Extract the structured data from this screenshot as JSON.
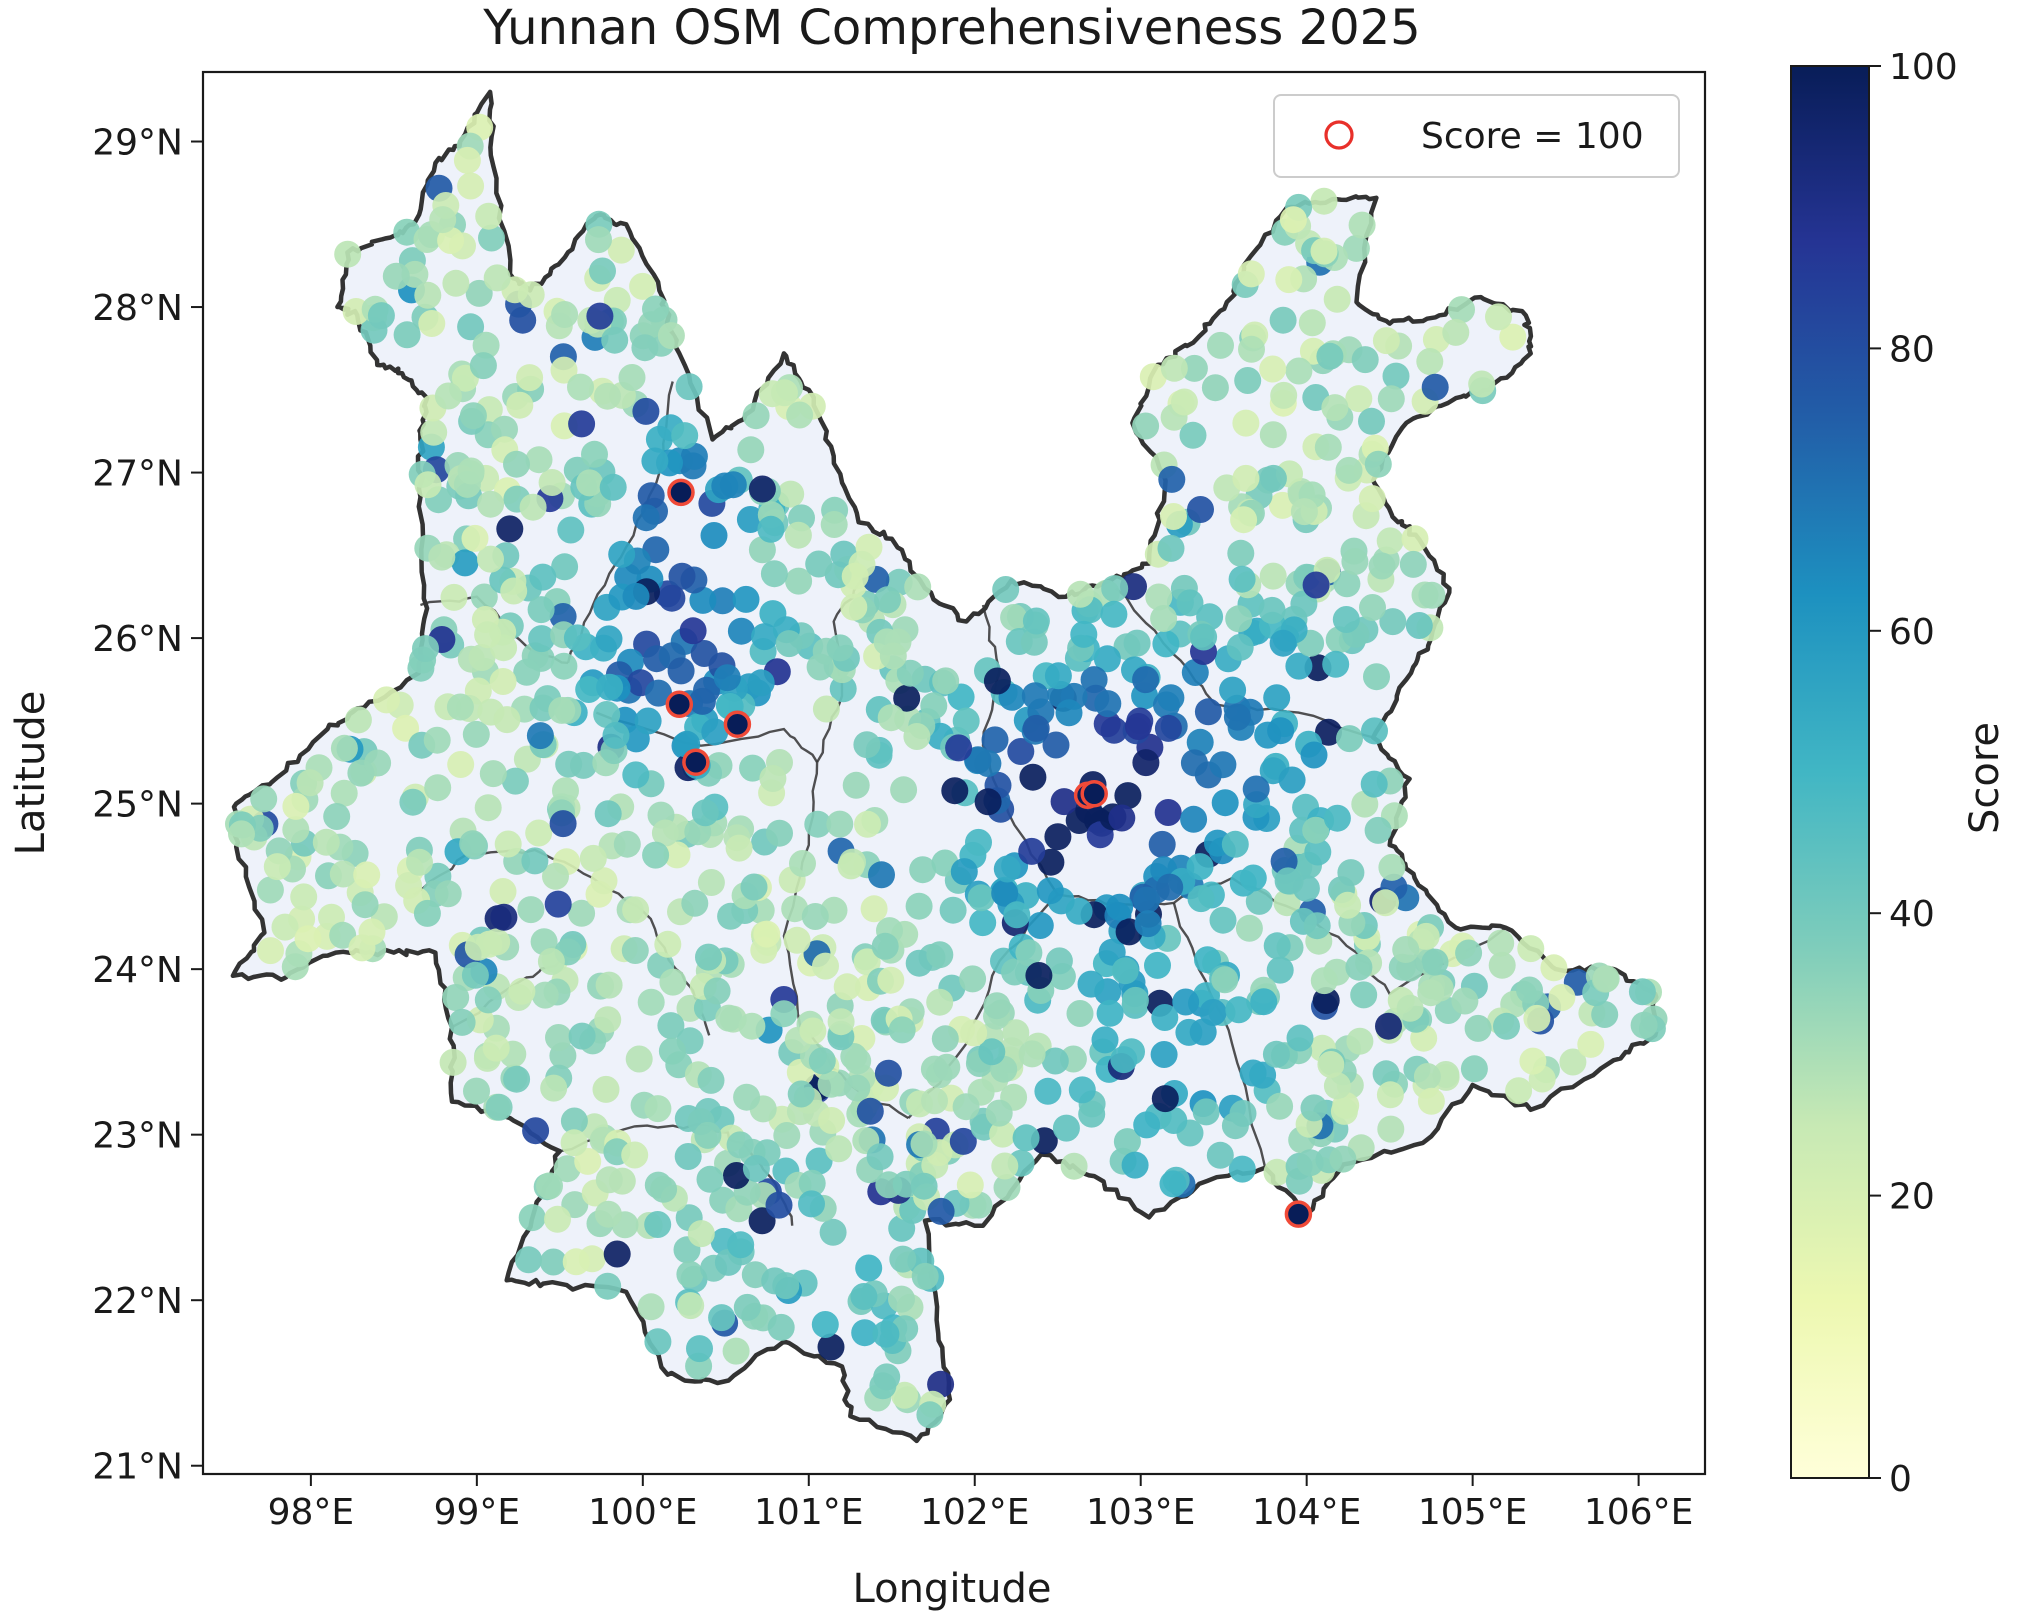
{
  "chart_data": {
    "type": "scatter",
    "title": "Yunnan OSM Comprehensiveness 2025",
    "xlabel": "Longitude",
    "ylabel": "Latitude",
    "xlim": [
      97.35,
      106.4
    ],
    "ylim": [
      20.95,
      29.42
    ],
    "x_ticks": [
      {
        "value": 98,
        "label": "98°E"
      },
      {
        "value": 99,
        "label": "99°E"
      },
      {
        "value": 100,
        "label": "100°E"
      },
      {
        "value": 101,
        "label": "101°E"
      },
      {
        "value": 102,
        "label": "102°E"
      },
      {
        "value": 103,
        "label": "103°E"
      },
      {
        "value": 104,
        "label": "104°E"
      },
      {
        "value": 105,
        "label": "105°E"
      },
      {
        "value": 106,
        "label": "106°E"
      }
    ],
    "y_ticks": [
      {
        "value": 21,
        "label": "21°N"
      },
      {
        "value": 22,
        "label": "22°N"
      },
      {
        "value": 23,
        "label": "23°N"
      },
      {
        "value": 24,
        "label": "24°N"
      },
      {
        "value": 25,
        "label": "25°N"
      },
      {
        "value": 26,
        "label": "26°N"
      },
      {
        "value": 27,
        "label": "27°N"
      },
      {
        "value": 28,
        "label": "28°N"
      },
      {
        "value": 29,
        "label": "29°N"
      }
    ],
    "colorbar": {
      "label": "Score",
      "colormap": "YlGnBu",
      "range": [
        0,
        100
      ],
      "ticks": [
        {
          "value": 0,
          "label": "0"
        },
        {
          "value": 20,
          "label": "20"
        },
        {
          "value": 40,
          "label": "40"
        },
        {
          "value": 60,
          "label": "60"
        },
        {
          "value": 80,
          "label": "80"
        },
        {
          "value": 100,
          "label": "100"
        }
      ],
      "colors": [
        "#ffffd9",
        "#edf8b1",
        "#c7e9b4",
        "#7fcdbb",
        "#41b6c4",
        "#1d91c0",
        "#225ea8",
        "#253494",
        "#081d58"
      ]
    },
    "legend": {
      "entries": [
        {
          "label": "Score = 100",
          "marker": "circle",
          "edge_color": "#e8302a"
        }
      ],
      "position": "top-right"
    },
    "grid": false,
    "region_fill": "#eef2fa",
    "boundary_color": "#333333",
    "highlight_color": "#f04a38",
    "province_boundary": [
      [
        97.53,
        23.96
      ],
      [
        97.72,
        24.22
      ],
      [
        97.55,
        24.74
      ],
      [
        97.55,
        25.0
      ],
      [
        97.8,
        25.16
      ],
      [
        98.1,
        25.45
      ],
      [
        98.32,
        25.58
      ],
      [
        98.65,
        25.79
      ],
      [
        98.7,
        26.18
      ],
      [
        98.66,
        26.75
      ],
      [
        98.66,
        27.2
      ],
      [
        98.7,
        27.45
      ],
      [
        98.55,
        27.6
      ],
      [
        98.4,
        27.65
      ],
      [
        98.28,
        27.95
      ],
      [
        98.16,
        28.0
      ],
      [
        98.22,
        28.33
      ],
      [
        98.48,
        28.42
      ],
      [
        98.62,
        28.5
      ],
      [
        98.75,
        28.87
      ],
      [
        98.9,
        29.0
      ],
      [
        99.08,
        29.3
      ],
      [
        99.1,
        28.85
      ],
      [
        99.2,
        28.2
      ],
      [
        99.32,
        28.1
      ],
      [
        99.53,
        28.3
      ],
      [
        99.72,
        28.55
      ],
      [
        99.9,
        28.5
      ],
      [
        100.1,
        28.1
      ],
      [
        100.22,
        27.72
      ],
      [
        100.42,
        27.2
      ],
      [
        100.62,
        27.35
      ],
      [
        100.85,
        27.72
      ],
      [
        101.0,
        27.5
      ],
      [
        101.15,
        27.1
      ],
      [
        101.3,
        26.7
      ],
      [
        101.5,
        26.6
      ],
      [
        101.7,
        26.3
      ],
      [
        101.95,
        26.1
      ],
      [
        102.22,
        26.35
      ],
      [
        102.55,
        26.25
      ],
      [
        102.82,
        26.35
      ],
      [
        103.05,
        26.45
      ],
      [
        103.15,
        26.95
      ],
      [
        102.95,
        27.3
      ],
      [
        103.1,
        27.65
      ],
      [
        103.35,
        27.82
      ],
      [
        103.55,
        28.06
      ],
      [
        103.62,
        28.25
      ],
      [
        103.88,
        28.6
      ],
      [
        104.15,
        28.65
      ],
      [
        104.42,
        28.66
      ],
      [
        104.3,
        28.03
      ],
      [
        104.5,
        27.9
      ],
      [
        104.8,
        27.95
      ],
      [
        105.05,
        28.06
      ],
      [
        105.32,
        27.95
      ],
      [
        105.35,
        27.72
      ],
      [
        105.1,
        27.5
      ],
      [
        104.9,
        27.45
      ],
      [
        104.6,
        27.3
      ],
      [
        104.4,
        26.95
      ],
      [
        104.55,
        26.7
      ],
      [
        104.66,
        26.62
      ],
      [
        104.86,
        26.3
      ],
      [
        104.75,
        26.0
      ],
      [
        104.6,
        25.75
      ],
      [
        104.4,
        25.4
      ],
      [
        104.62,
        25.15
      ],
      [
        104.5,
        24.75
      ],
      [
        104.65,
        24.55
      ],
      [
        104.9,
        24.25
      ],
      [
        105.2,
        24.25
      ],
      [
        105.5,
        24.0
      ],
      [
        105.85,
        24.0
      ],
      [
        106.1,
        23.85
      ],
      [
        106.1,
        23.6
      ],
      [
        105.85,
        23.45
      ],
      [
        105.35,
        23.15
      ],
      [
        105.0,
        23.3
      ],
      [
        104.7,
        22.95
      ],
      [
        104.22,
        22.82
      ],
      [
        104.0,
        22.52
      ],
      [
        103.75,
        22.8
      ],
      [
        103.4,
        22.72
      ],
      [
        103.05,
        22.5
      ],
      [
        102.72,
        22.75
      ],
      [
        102.4,
        22.88
      ],
      [
        102.05,
        22.45
      ],
      [
        101.7,
        22.48
      ],
      [
        101.78,
        21.8
      ],
      [
        101.85,
        21.4
      ],
      [
        101.65,
        21.15
      ],
      [
        101.25,
        21.3
      ],
      [
        101.2,
        21.6
      ],
      [
        100.85,
        21.75
      ],
      [
        100.45,
        21.5
      ],
      [
        100.15,
        21.55
      ],
      [
        99.9,
        22.05
      ],
      [
        99.4,
        22.1
      ],
      [
        99.18,
        22.12
      ],
      [
        99.35,
        22.55
      ],
      [
        99.5,
        22.9
      ],
      [
        99.2,
        23.1
      ],
      [
        98.85,
        23.2
      ],
      [
        98.85,
        23.65
      ],
      [
        98.75,
        24.1
      ],
      [
        98.5,
        24.1
      ],
      [
        98.15,
        24.1
      ],
      [
        97.85,
        23.95
      ],
      [
        97.53,
        23.96
      ]
    ],
    "inner_boundaries": [
      [
        [
          98.62,
          24.45
        ],
        [
          98.95,
          24.7
        ],
        [
          99.35,
          24.72
        ],
        [
          99.7,
          24.55
        ],
        [
          100.0,
          24.35
        ],
        [
          100.2,
          24.0
        ],
        [
          100.35,
          23.8
        ],
        [
          100.4,
          23.6
        ]
      ],
      [
        [
          98.85,
          23.65
        ],
        [
          99.3,
          23.95
        ],
        [
          99.5,
          24.05
        ]
      ],
      [
        [
          99.5,
          22.9
        ],
        [
          99.95,
          23.05
        ],
        [
          100.4,
          23.05
        ],
        [
          100.6,
          22.95
        ],
        [
          100.8,
          22.7
        ],
        [
          100.9,
          22.45
        ]
      ],
      [
        [
          98.66,
          26.2
        ],
        [
          99.0,
          26.25
        ],
        [
          99.3,
          25.95
        ],
        [
          99.55,
          25.85
        ]
      ],
      [
        [
          99.55,
          25.85
        ],
        [
          99.7,
          26.2
        ],
        [
          99.9,
          26.55
        ],
        [
          100.1,
          27.0
        ],
        [
          100.18,
          27.55
        ]
      ],
      [
        [
          99.72,
          25.55
        ],
        [
          100.35,
          25.35
        ],
        [
          100.85,
          25.45
        ],
        [
          101.05,
          25.25
        ]
      ],
      [
        [
          101.05,
          25.25
        ],
        [
          101.2,
          25.65
        ],
        [
          101.15,
          26.1
        ],
        [
          101.35,
          26.4
        ]
      ],
      [
        [
          101.05,
          25.25
        ],
        [
          101.0,
          24.75
        ],
        [
          100.85,
          24.2
        ],
        [
          100.95,
          23.65
        ],
        [
          101.25,
          23.3
        ],
        [
          101.6,
          23.1
        ]
      ],
      [
        [
          101.6,
          23.1
        ],
        [
          101.95,
          23.55
        ],
        [
          102.15,
          24.05
        ],
        [
          102.5,
          24.45
        ]
      ],
      [
        [
          102.5,
          24.45
        ],
        [
          102.85,
          24.4
        ],
        [
          103.2,
          24.4
        ],
        [
          103.55,
          24.55
        ],
        [
          103.95,
          24.35
        ],
        [
          104.3,
          24.1
        ],
        [
          104.5,
          23.85
        ],
        [
          105.2,
          24.25
        ]
      ],
      [
        [
          102.5,
          24.45
        ],
        [
          102.2,
          24.95
        ],
        [
          102.05,
          25.35
        ],
        [
          102.15,
          25.8
        ],
        [
          102.05,
          26.2
        ]
      ],
      [
        [
          102.85,
          26.3
        ],
        [
          103.2,
          25.9
        ],
        [
          103.45,
          25.6
        ],
        [
          103.95,
          25.55
        ],
        [
          104.4,
          25.4
        ]
      ],
      [
        [
          103.2,
          24.4
        ],
        [
          103.35,
          24.0
        ],
        [
          103.55,
          23.55
        ],
        [
          103.75,
          22.8
        ]
      ]
    ],
    "score100_points": [
      [
        100.23,
        26.88
      ],
      [
        100.22,
        25.6
      ],
      [
        100.32,
        25.25
      ],
      [
        100.57,
        25.48
      ],
      [
        102.68,
        25.05
      ],
      [
        102.72,
        25.06
      ],
      [
        103.95,
        22.52
      ]
    ],
    "n_random_points": 1400,
    "random_seed": 20250
  }
}
